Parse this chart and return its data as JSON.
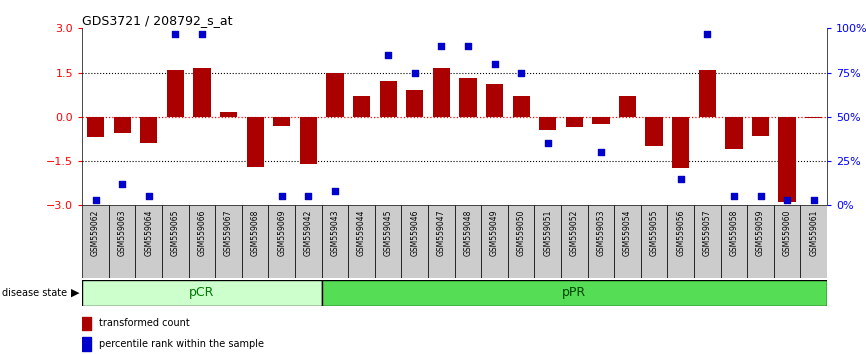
{
  "title": "GDS3721 / 208792_s_at",
  "samples": [
    "GSM559062",
    "GSM559063",
    "GSM559064",
    "GSM559065",
    "GSM559066",
    "GSM559067",
    "GSM559068",
    "GSM559069",
    "GSM559042",
    "GSM559043",
    "GSM559044",
    "GSM559045",
    "GSM559046",
    "GSM559047",
    "GSM559048",
    "GSM559049",
    "GSM559050",
    "GSM559051",
    "GSM559052",
    "GSM559053",
    "GSM559054",
    "GSM559055",
    "GSM559056",
    "GSM559057",
    "GSM559058",
    "GSM559059",
    "GSM559060",
    "GSM559061"
  ],
  "transformed_count": [
    -0.7,
    -0.55,
    -0.9,
    1.6,
    1.65,
    0.15,
    -1.7,
    -0.3,
    -1.6,
    1.5,
    0.7,
    1.2,
    0.9,
    1.65,
    1.3,
    1.1,
    0.7,
    -0.45,
    -0.35,
    -0.25,
    0.7,
    -1.0,
    -1.75,
    1.6,
    -1.1,
    -0.65,
    -2.9,
    -0.05
  ],
  "percentile_rank": [
    3,
    12,
    5,
    97,
    97,
    null,
    null,
    5,
    5,
    8,
    null,
    85,
    75,
    90,
    90,
    80,
    75,
    35,
    null,
    30,
    null,
    null,
    15,
    97,
    5,
    5,
    3,
    3
  ],
  "pcr_count": 9,
  "ppr_count": 19,
  "bar_color": "#aa0000",
  "dot_color": "#0000cc",
  "ylim": [
    -3,
    3
  ],
  "yticks_left": [
    -3,
    -1.5,
    0,
    1.5,
    3
  ],
  "yticks_right": [
    0,
    25,
    50,
    75,
    100
  ],
  "hline_y": [
    -1.5,
    0,
    1.5
  ],
  "pcr_color": "#ccffcc",
  "ppr_color": "#55dd55",
  "bg_color": "#ffffff"
}
